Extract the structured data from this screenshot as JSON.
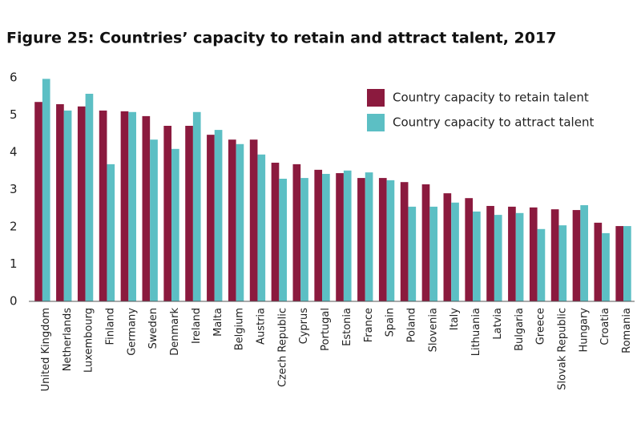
{
  "chart_data": {
    "type": "bar",
    "title": "Figure 25: Countries’ capacity to retain and attract talent, 2017",
    "categories": [
      "United Kingdom",
      "Netherlands",
      "Luxembourg",
      "Finland",
      "Germany",
      "Sweden",
      "Denmark",
      "Ireland",
      "Malta",
      "Belgium",
      "Austria",
      "Czech Republic",
      "Cyprus",
      "Portugal",
      "Estonia",
      "France",
      "Spain",
      "Poland",
      "Slovenia",
      "Italy",
      "Lithuania",
      "Latvia",
      "Bulgaria",
      "Greece",
      "Slovak Republic",
      "Hungary",
      "Croatia",
      "Romania"
    ],
    "series": [
      {
        "name": "Country capacity to retain talent",
        "color": "#8b1a3e",
        "values": [
          5.35,
          5.29,
          5.23,
          5.12,
          5.1,
          4.97,
          4.71,
          4.71,
          4.47,
          4.34,
          4.34,
          3.72,
          3.68,
          3.53,
          3.44,
          3.31,
          3.31,
          3.2,
          3.14,
          2.9,
          2.77,
          2.56,
          2.54,
          2.52,
          2.47,
          2.45,
          2.11,
          2.02
        ]
      },
      {
        "name": "Country capacity to attract talent",
        "color": "#5cbfc4",
        "values": [
          5.97,
          5.12,
          5.57,
          3.68,
          5.08,
          4.34,
          4.09,
          5.08,
          4.6,
          4.22,
          3.94,
          3.29,
          3.31,
          3.42,
          3.51,
          3.46,
          3.25,
          2.54,
          2.54,
          2.65,
          2.41,
          2.32,
          2.37,
          1.94,
          2.04,
          2.58,
          1.83,
          2.02
        ]
      }
    ],
    "ylim": [
      0,
      6
    ],
    "yticks": [
      0,
      1,
      2,
      3,
      4,
      5,
      6
    ],
    "grid": false,
    "legend": "top-right"
  }
}
